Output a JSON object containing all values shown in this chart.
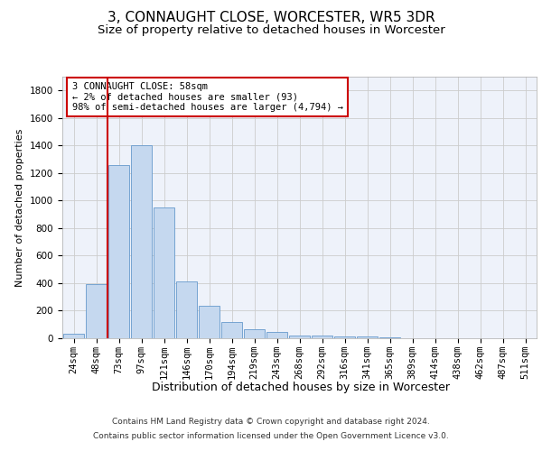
{
  "title": "3, CONNAUGHT CLOSE, WORCESTER, WR5 3DR",
  "subtitle": "Size of property relative to detached houses in Worcester",
  "xlabel": "Distribution of detached houses by size in Worcester",
  "ylabel": "Number of detached properties",
  "categories": [
    "24sqm",
    "48sqm",
    "73sqm",
    "97sqm",
    "121sqm",
    "146sqm",
    "170sqm",
    "194sqm",
    "219sqm",
    "243sqm",
    "268sqm",
    "292sqm",
    "316sqm",
    "341sqm",
    "365sqm",
    "389sqm",
    "414sqm",
    "438sqm",
    "462sqm",
    "487sqm",
    "511sqm"
  ],
  "values": [
    30,
    390,
    1260,
    1400,
    950,
    410,
    235,
    120,
    65,
    45,
    20,
    20,
    15,
    10,
    5,
    3,
    2,
    1,
    1,
    0,
    0
  ],
  "bar_color": "#c5d8ef",
  "bar_edgecolor": "#6699cc",
  "vline_x": 1.5,
  "vline_color": "#cc0000",
  "annotation_box_text": "3 CONNAUGHT CLOSE: 58sqm\n← 2% of detached houses are smaller (93)\n98% of semi-detached houses are larger (4,794) →",
  "annotation_box_edgecolor": "#cc0000",
  "ylim": [
    0,
    1900
  ],
  "yticks": [
    0,
    200,
    400,
    600,
    800,
    1000,
    1200,
    1400,
    1600,
    1800
  ],
  "grid_color": "#cccccc",
  "bg_color": "#eef2fa",
  "footer_line1": "Contains HM Land Registry data © Crown copyright and database right 2024.",
  "footer_line2": "Contains public sector information licensed under the Open Government Licence v3.0.",
  "title_fontsize": 11,
  "subtitle_fontsize": 9.5,
  "xlabel_fontsize": 9,
  "ylabel_fontsize": 8,
  "tick_fontsize": 7.5,
  "footer_fontsize": 6.5
}
